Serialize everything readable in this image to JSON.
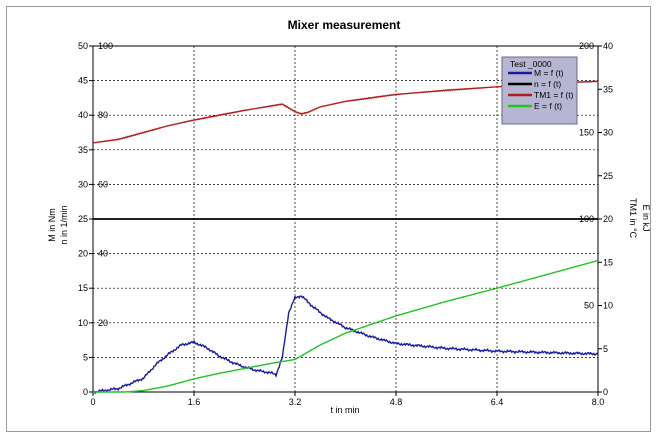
{
  "chart_data": {
    "type": "line",
    "title": "Mixer measurement",
    "xlabel": "t in min",
    "x_ticks": [
      "0",
      "1.6",
      "3.2",
      "4.8",
      "6.4",
      "8.0"
    ],
    "xlim": [
      0,
      8.0
    ],
    "left_axes": {
      "labels": [
        "M in Nm",
        "n in 1/min"
      ],
      "M_ticks": [
        "0",
        "5",
        "10",
        "15",
        "20",
        "25",
        "30",
        "35",
        "40",
        "45",
        "50"
      ],
      "n_ticks": [
        "0",
        "20",
        "40",
        "60",
        "80",
        "100"
      ],
      "M_range": [
        0,
        50
      ],
      "n_range": [
        0,
        100
      ]
    },
    "right_axes": {
      "labels": [
        "TM1 in °C",
        "E in kJ"
      ],
      "TM1_ticks": [
        "0",
        "50",
        "100",
        "150",
        "200"
      ],
      "E_ticks": [
        "0",
        "5",
        "10",
        "15",
        "20",
        "25",
        "30",
        "35",
        "40"
      ],
      "TM1_range": [
        0,
        200
      ],
      "E_range": [
        0,
        40
      ]
    },
    "grid": true,
    "legend": {
      "title": "Test _0000",
      "position": "top-right",
      "entries": [
        {
          "label": "M = f (t)",
          "color": "#1a1aa6"
        },
        {
          "label": "n = f (t)",
          "color": "#000000"
        },
        {
          "label": "TM1 = f (t)",
          "color": "#b21e1e"
        },
        {
          "label": "E = f (t)",
          "color": "#22c422"
        }
      ]
    },
    "series": [
      {
        "name": "M = f (t)",
        "axis": "M",
        "color": "#1a1aa6",
        "x": [
          0,
          0.4,
          0.8,
          1.0,
          1.2,
          1.4,
          1.6,
          1.8,
          2.0,
          2.2,
          2.4,
          2.6,
          2.8,
          2.9,
          3.0,
          3.1,
          3.2,
          3.3,
          3.5,
          3.7,
          4.0,
          4.4,
          4.8,
          5.6,
          6.4,
          7.2,
          8.0
        ],
        "y": [
          0,
          0.5,
          2.0,
          4.0,
          5.5,
          6.8,
          7.2,
          6.4,
          5.2,
          4.3,
          3.6,
          3.1,
          2.8,
          2.5,
          5.0,
          11.5,
          13.6,
          13.9,
          12.2,
          10.8,
          9.3,
          8.0,
          7.0,
          6.3,
          5.9,
          5.7,
          5.5
        ]
      },
      {
        "name": "n = f (t)",
        "axis": "M",
        "color": "#000000",
        "x": [
          0,
          8.0
        ],
        "y": [
          25,
          25
        ]
      },
      {
        "name": "TM1 = f (t)",
        "axis": "M",
        "color": "#b21e1e",
        "x": [
          0,
          0.4,
          0.8,
          1.2,
          1.6,
          2.0,
          2.4,
          2.8,
          3.0,
          3.2,
          3.3,
          3.4,
          3.6,
          4.0,
          4.8,
          5.6,
          6.4,
          7.2,
          8.0
        ],
        "y": [
          36,
          36.5,
          37.5,
          38.5,
          39.3,
          40.0,
          40.7,
          41.3,
          41.6,
          40.5,
          40.2,
          40.4,
          41.2,
          42.0,
          43.0,
          43.6,
          44.1,
          44.6,
          44.9
        ]
      },
      {
        "name": "E = f (t)",
        "axis": "M",
        "color": "#22c422",
        "x": [
          0,
          0.5,
          0.8,
          1.2,
          1.6,
          2.0,
          2.4,
          2.8,
          3.0,
          3.2,
          3.6,
          4.0,
          4.8,
          5.6,
          6.4,
          7.2,
          8.0
        ],
        "y": [
          0,
          0,
          0.2,
          0.9,
          1.9,
          2.7,
          3.4,
          4.1,
          4.4,
          4.7,
          6.8,
          8.5,
          11.0,
          13.1,
          15.0,
          17.0,
          19.0
        ]
      }
    ]
  }
}
